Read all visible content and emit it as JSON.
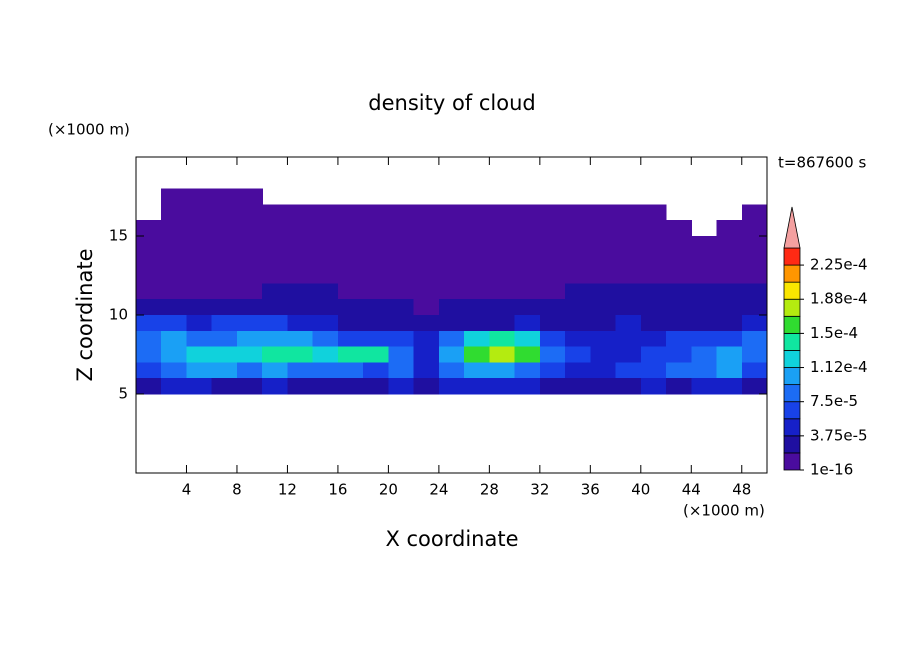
{
  "chart_data": {
    "type": "contour",
    "title": "density of cloud",
    "xlabel": "X coordinate",
    "ylabel": "Z coordinate",
    "x_unit": "(×1000 m)",
    "y_unit": "(×1000 m)",
    "time_label": "t=867600 s",
    "xlim": [
      0,
      50
    ],
    "ylim": [
      0,
      20
    ],
    "xticks": [
      4,
      8,
      12,
      16,
      20,
      24,
      28,
      32,
      36,
      40,
      44,
      48
    ],
    "yticks": [
      5,
      10,
      15
    ],
    "x": [
      1,
      3,
      5,
      7,
      9,
      11,
      13,
      15,
      17,
      19,
      21,
      23,
      25,
      27,
      29,
      31,
      33,
      35,
      37,
      39,
      41,
      43,
      45,
      47,
      49
    ],
    "z": [
      17.5,
      16.5,
      15.5,
      14.5,
      13.5,
      12.5,
      11.5,
      10.5,
      9.5,
      8.5,
      7.5,
      6.5,
      5.5
    ],
    "values": [
      [
        null,
        9e-06,
        9e-06,
        9e-06,
        9e-06,
        null,
        null,
        null,
        null,
        null,
        null,
        null,
        null,
        null,
        null,
        null,
        null,
        null,
        null,
        null,
        null,
        null,
        null,
        null,
        null
      ],
      [
        null,
        9e-06,
        9e-06,
        9e-06,
        9e-06,
        9e-06,
        9e-06,
        9e-06,
        9e-06,
        9e-06,
        9e-06,
        9e-06,
        9e-06,
        9e-06,
        9e-06,
        9e-06,
        9e-06,
        9e-06,
        9e-06,
        9e-06,
        9e-06,
        null,
        null,
        null,
        9e-06
      ],
      [
        9e-06,
        9e-06,
        9e-06,
        9e-06,
        9e-06,
        9e-06,
        9e-06,
        9e-06,
        9e-06,
        9e-06,
        9e-06,
        9e-06,
        9e-06,
        9e-06,
        9e-06,
        9e-06,
        9e-06,
        9e-06,
        9e-06,
        9e-06,
        9e-06,
        9e-06,
        null,
        9e-06,
        9e-06
      ],
      [
        9e-06,
        9e-06,
        9e-06,
        9e-06,
        9e-06,
        9e-06,
        9e-06,
        9e-06,
        9e-06,
        9e-06,
        9e-06,
        9e-06,
        9e-06,
        9e-06,
        9e-06,
        9e-06,
        9e-06,
        9e-06,
        9e-06,
        9e-06,
        9e-06,
        9e-06,
        9e-06,
        9e-06,
        9e-06
      ],
      [
        9e-06,
        9e-06,
        9e-06,
        9e-06,
        9e-06,
        9e-06,
        9e-06,
        9e-06,
        9e-06,
        9e-06,
        9e-06,
        9e-06,
        9e-06,
        9e-06,
        9e-06,
        9e-06,
        9e-06,
        9e-06,
        9e-06,
        9e-06,
        9e-06,
        9e-06,
        9e-06,
        9e-06,
        9e-06
      ],
      [
        9e-06,
        9e-06,
        9e-06,
        9e-06,
        9e-06,
        9e-06,
        9e-06,
        9e-06,
        9e-06,
        9e-06,
        9e-06,
        9e-06,
        9e-06,
        9e-06,
        9e-06,
        9e-06,
        9e-06,
        9e-06,
        9e-06,
        9e-06,
        9e-06,
        9e-06,
        9e-06,
        9e-06,
        9e-06
      ],
      [
        9e-06,
        9e-06,
        9e-06,
        9e-06,
        9e-06,
        2.8e-05,
        2.8e-05,
        2.8e-05,
        9e-06,
        9e-06,
        9e-06,
        9e-06,
        9e-06,
        9e-06,
        9e-06,
        9e-06,
        9e-06,
        2.8e-05,
        2.8e-05,
        2.8e-05,
        2.8e-05,
        2.8e-05,
        2.8e-05,
        2.8e-05,
        2.8e-05
      ],
      [
        2.8e-05,
        2.8e-05,
        2.8e-05,
        2.8e-05,
        2.8e-05,
        2.8e-05,
        2.8e-05,
        2.8e-05,
        2.8e-05,
        2.8e-05,
        2.8e-05,
        9e-06,
        2.8e-05,
        2.8e-05,
        2.8e-05,
        2.8e-05,
        2.8e-05,
        2.8e-05,
        2.8e-05,
        2.8e-05,
        2.8e-05,
        2.8e-05,
        2.8e-05,
        2.8e-05,
        2.8e-05
      ],
      [
        6.5e-05,
        6.5e-05,
        4.7e-05,
        6.5e-05,
        6.5e-05,
        6.5e-05,
        4.7e-05,
        4.7e-05,
        2.8e-05,
        2.8e-05,
        2.8e-05,
        2.8e-05,
        2.8e-05,
        2.8e-05,
        2.8e-05,
        4.7e-05,
        2.8e-05,
        2.8e-05,
        2.8e-05,
        4.7e-05,
        2.8e-05,
        2.8e-05,
        2.8e-05,
        2.8e-05,
        4.7e-05
      ],
      [
        8.4e-05,
        0.000103,
        8.4e-05,
        8.4e-05,
        0.000103,
        0.000103,
        0.000103,
        8.4e-05,
        6.5e-05,
        6.5e-05,
        6.5e-05,
        4.7e-05,
        8.4e-05,
        0.000122,
        0.000141,
        0.000122,
        6.5e-05,
        4.7e-05,
        4.7e-05,
        4.7e-05,
        4.7e-05,
        6.5e-05,
        6.5e-05,
        6.5e-05,
        8.4e-05
      ],
      [
        8.4e-05,
        0.000103,
        0.000122,
        0.000122,
        0.000122,
        0.000141,
        0.000141,
        0.000122,
        0.000141,
        0.000141,
        8.4e-05,
        4.7e-05,
        0.000103,
        0.00016,
        0.000178,
        0.00016,
        8.4e-05,
        6.5e-05,
        4.7e-05,
        4.7e-05,
        6.5e-05,
        6.5e-05,
        8.4e-05,
        0.000103,
        8.4e-05
      ],
      [
        6.5e-05,
        8.4e-05,
        0.000103,
        0.000103,
        8.4e-05,
        0.000103,
        8.4e-05,
        8.4e-05,
        8.4e-05,
        6.5e-05,
        8.4e-05,
        4.7e-05,
        8.4e-05,
        0.000103,
        0.000103,
        8.4e-05,
        6.5e-05,
        4.7e-05,
        4.7e-05,
        6.5e-05,
        6.5e-05,
        8.4e-05,
        8.4e-05,
        0.000103,
        6.5e-05
      ],
      [
        2.8e-05,
        4.7e-05,
        4.7e-05,
        2.8e-05,
        2.8e-05,
        4.7e-05,
        2.8e-05,
        2.8e-05,
        2.8e-05,
        2.8e-05,
        4.7e-05,
        2.8e-05,
        4.7e-05,
        4.7e-05,
        4.7e-05,
        4.7e-05,
        2.8e-05,
        2.8e-05,
        2.8e-05,
        2.8e-05,
        4.7e-05,
        2.8e-05,
        4.7e-05,
        4.7e-05,
        2.8e-05
      ]
    ],
    "levels": [
      1e-16,
      1.875e-05,
      3.75e-05,
      5.625e-05,
      7.5e-05,
      9.375e-05,
      0.0001125,
      0.00013125,
      0.00015,
      0.00016875,
      0.0001875,
      0.00020625,
      0.000225,
      0.00024375
    ],
    "colors": [
      "#4a0c9e",
      "#1f0fa0",
      "#1620c8",
      "#1842e8",
      "#1c6cf5",
      "#1aa0f5",
      "#10d2dc",
      "#10e6a0",
      "#30dc30",
      "#b4eb10",
      "#fae600",
      "#ff9600",
      "#ff2a14"
    ],
    "extend_color": "#f4a0a0",
    "colorbar_ticks": [
      {
        "value": 1e-16,
        "label": "1e-16"
      },
      {
        "value": 3.75e-05,
        "label": "3.75e-5"
      },
      {
        "value": 7.5e-05,
        "label": "7.5e-5"
      },
      {
        "value": 0.0001125,
        "label": "1.12e-4"
      },
      {
        "value": 0.00015,
        "label": "1.5e-4"
      },
      {
        "value": 0.0001875,
        "label": "1.88e-4"
      },
      {
        "value": 0.000225,
        "label": "2.25e-4"
      }
    ]
  }
}
